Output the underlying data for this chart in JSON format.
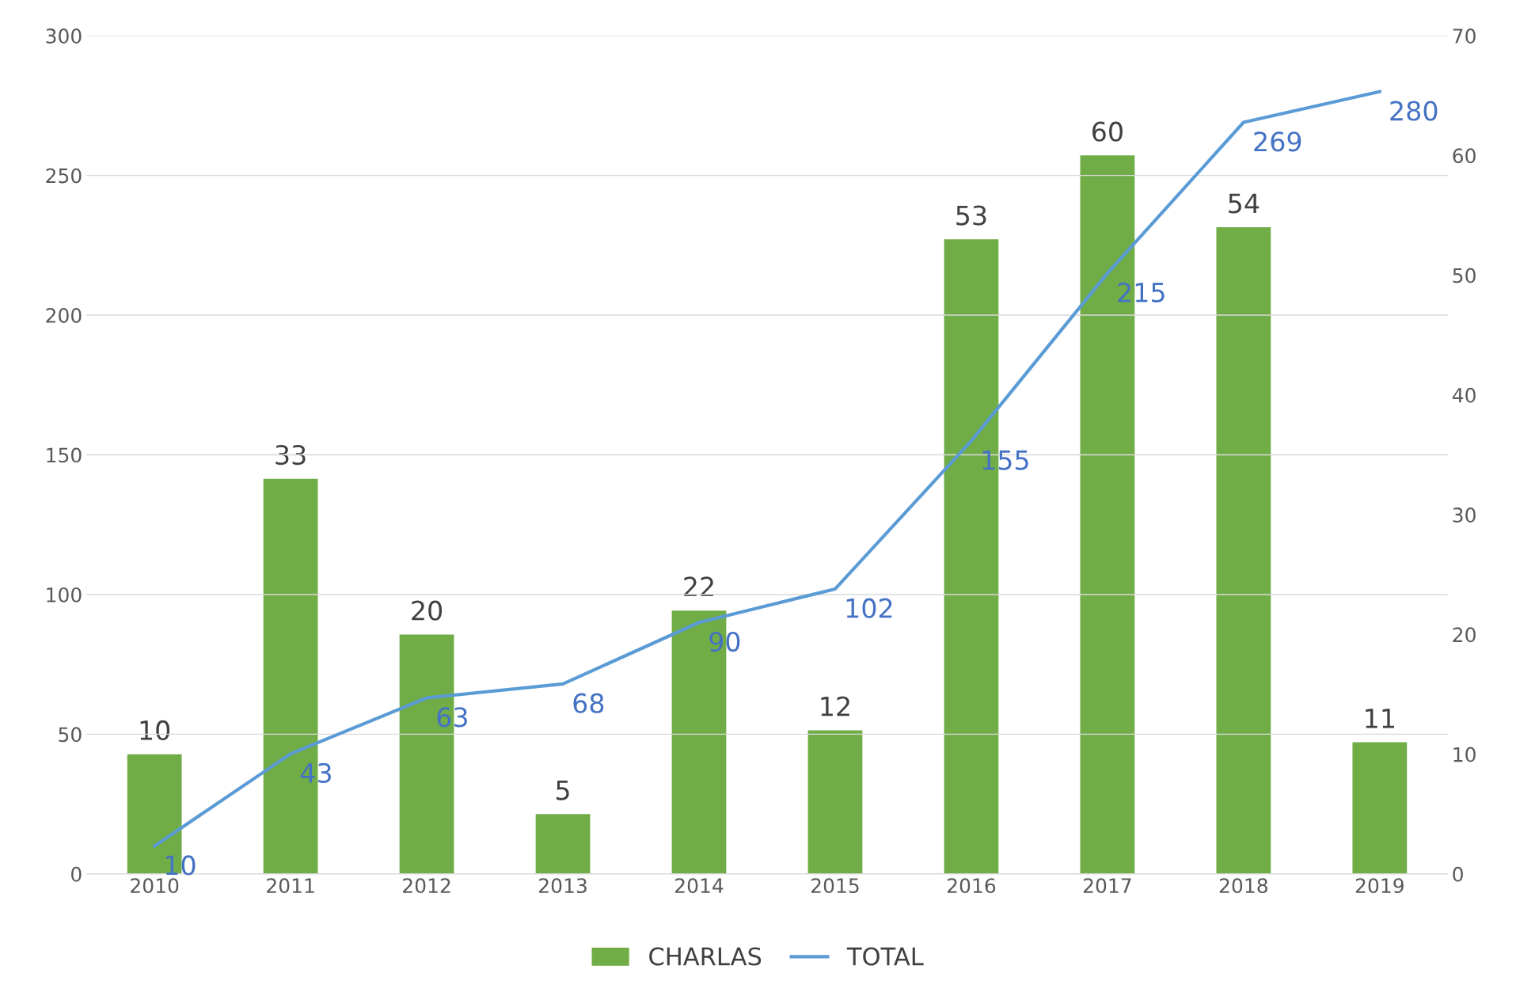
{
  "chart_data": {
    "type": "bar",
    "categories": [
      "2010",
      "2011",
      "2012",
      "2013",
      "2014",
      "2015",
      "2016",
      "2017",
      "2018",
      "2019"
    ],
    "series": [
      {
        "name": "CHARLAS",
        "axis": "y2",
        "color": "#70ad47",
        "values": [
          10,
          33,
          20,
          5,
          22,
          12,
          53,
          60,
          54,
          11
        ]
      },
      {
        "name": "TOTAL",
        "type": "line",
        "axis": "y",
        "color": "#5b9bd5",
        "values": [
          10,
          43,
          63,
          68,
          90,
          102,
          155,
          215,
          269,
          280
        ]
      }
    ],
    "ylim": [
      0,
      300
    ],
    "yticks": [
      0,
      50,
      100,
      150,
      200,
      250,
      300
    ],
    "y2lim": [
      0,
      70
    ],
    "y2ticks": [
      0,
      10,
      20,
      30,
      40,
      50,
      60,
      70
    ],
    "grid": "y",
    "legend": "bottom",
    "data_labels": true,
    "marker": "none",
    "line_style": "solid"
  }
}
